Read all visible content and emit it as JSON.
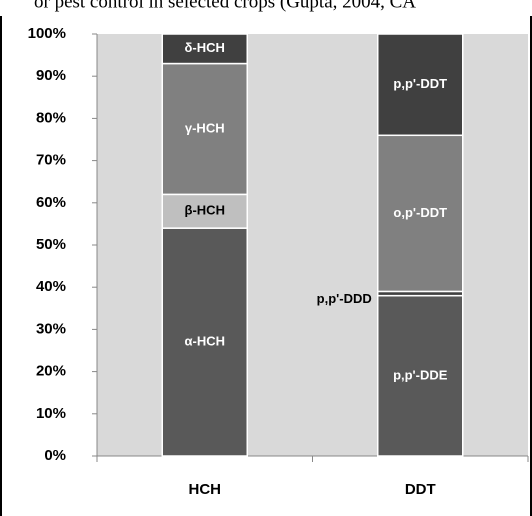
{
  "chart_data": {
    "type": "stacked_bar",
    "title": "or pest control in selected crops (Gupta, 2004, CA",
    "categories": [
      "HCH",
      "DDT"
    ],
    "series": [
      {
        "name": "α-HCH",
        "color": "#595959",
        "values": [
          54,
          null
        ]
      },
      {
        "name": "β-HCH",
        "color": "#bfbfbf",
        "values": [
          8,
          null
        ]
      },
      {
        "name": "γ-HCH",
        "color": "#808080",
        "values": [
          31,
          null
        ]
      },
      {
        "name": "δ-HCH",
        "color": "#404040",
        "values": [
          7,
          null
        ]
      },
      {
        "name": "p,p'-DDE",
        "color": "#595959",
        "values": [
          null,
          38
        ]
      },
      {
        "name": "p,p'-DDD",
        "color": "#404040",
        "values": [
          null,
          1
        ]
      },
      {
        "name": "o,p'-DDT",
        "color": "#808080",
        "values": [
          null,
          37
        ]
      },
      {
        "name": "p,p'-DDT",
        "color": "#404040",
        "values": [
          null,
          24
        ]
      }
    ],
    "ylim": [
      0,
      100
    ],
    "yticks": [
      {
        "value": 0,
        "label": "0%"
      },
      {
        "value": 10,
        "label": "10%"
      },
      {
        "value": 20,
        "label": "20%"
      },
      {
        "value": 30,
        "label": "30%"
      },
      {
        "value": 40,
        "label": "40%"
      },
      {
        "value": 50,
        "label": "50%"
      },
      {
        "value": 60,
        "label": "60%"
      },
      {
        "value": 70,
        "label": "70%"
      },
      {
        "value": 80,
        "label": "80%"
      },
      {
        "value": 90,
        "label": "90%"
      },
      {
        "value": 100,
        "label": "100%"
      }
    ],
    "background": "#d9d9d9"
  }
}
